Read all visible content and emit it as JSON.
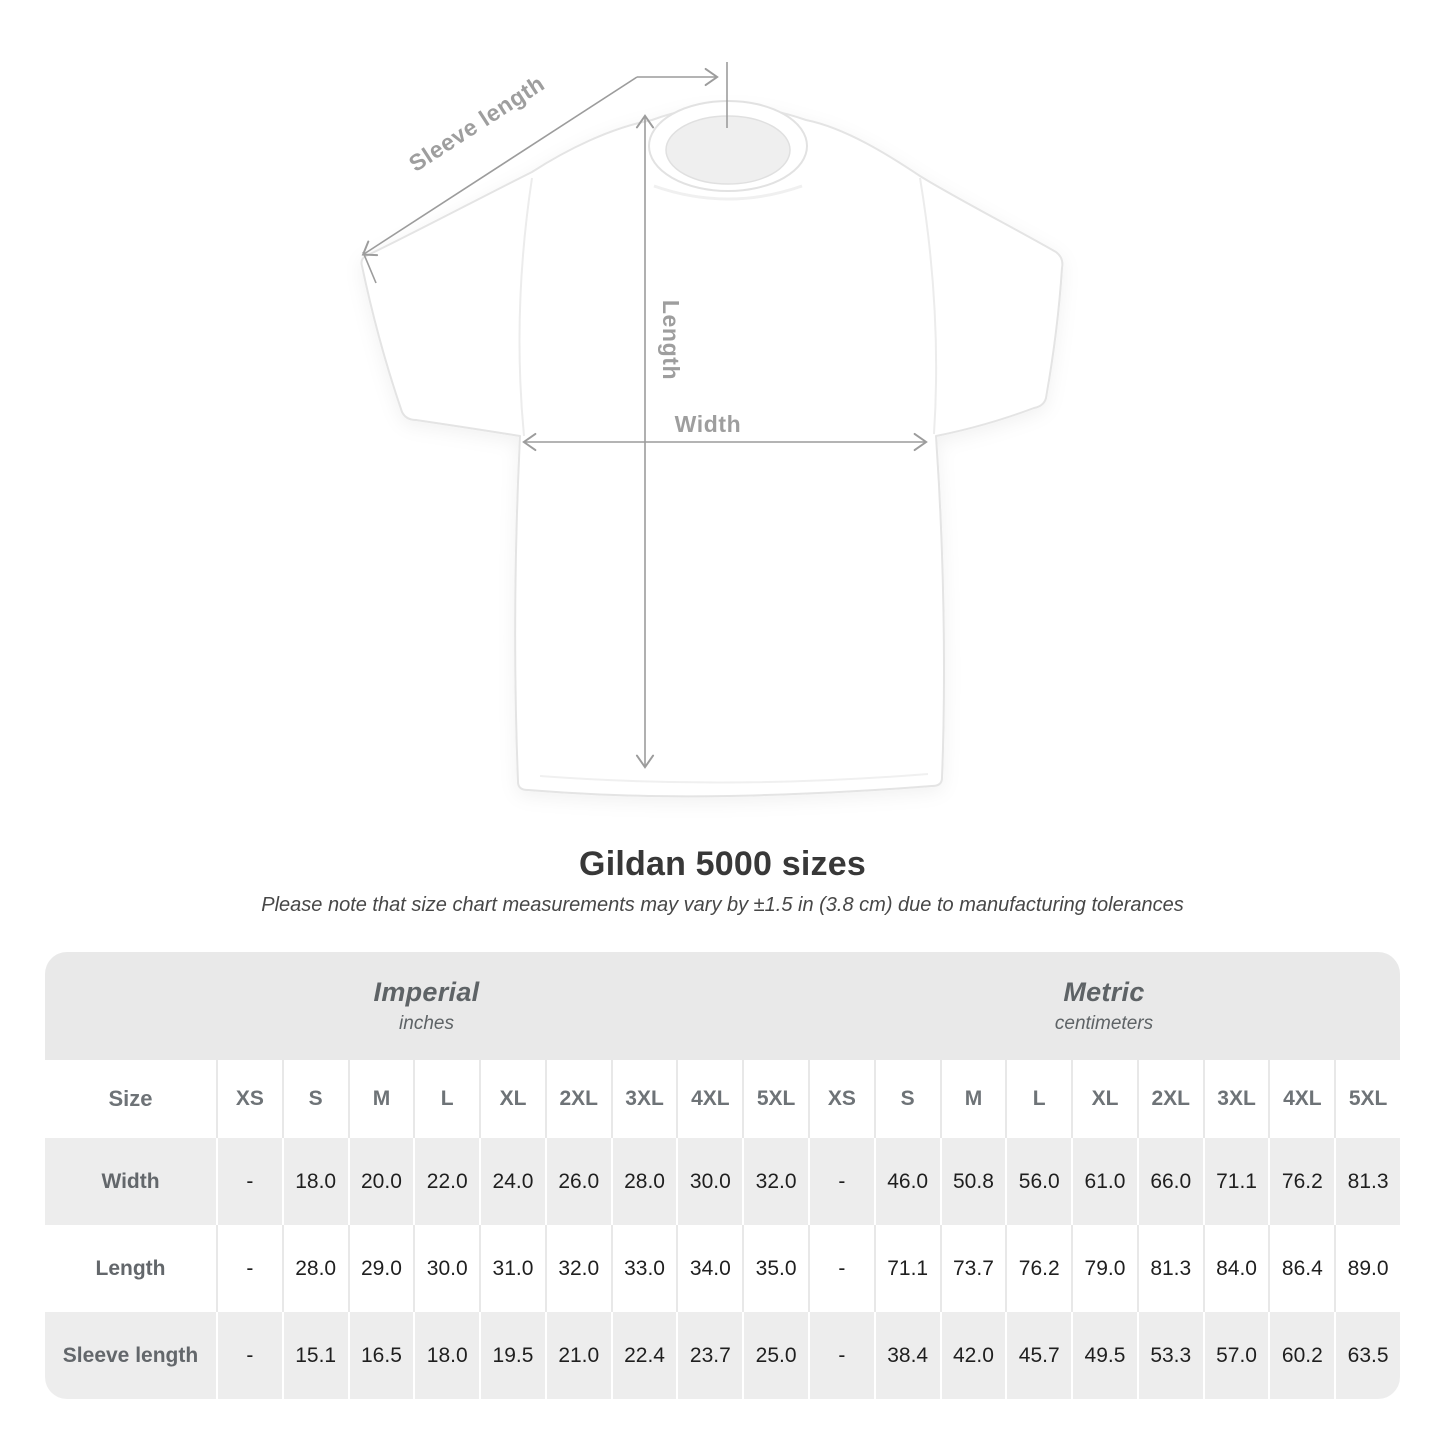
{
  "title": "Gildan 5000 sizes",
  "subtitle": "Please note that size chart measurements may vary by ±1.5 in (3.8 cm) due to manufacturing tolerances",
  "hero": {
    "sleeve_label": "Sleeve length",
    "length_label": "Length",
    "width_label": "Width"
  },
  "colors": {
    "annotation_gray": "#9c9c9c",
    "band_gray": "#e9e9e9",
    "row_gray": "#ededed",
    "value_text": "#1f1f1f",
    "heading_text": "#383838"
  },
  "table": {
    "size_label": "Size",
    "groups": [
      {
        "name": "Imperial",
        "unit": "inches"
      },
      {
        "name": "Metric",
        "unit": "centimeters"
      }
    ],
    "sizes": [
      "XS",
      "S",
      "M",
      "L",
      "XL",
      "2XL",
      "3XL",
      "4XL",
      "5XL"
    ],
    "rows": [
      {
        "label": "Width",
        "imperial": [
          "-",
          "18.0",
          "20.0",
          "22.0",
          "24.0",
          "26.0",
          "28.0",
          "30.0",
          "32.0"
        ],
        "metric": [
          "-",
          "46.0",
          "50.8",
          "56.0",
          "61.0",
          "66.0",
          "71.1",
          "76.2",
          "81.3"
        ]
      },
      {
        "label": "Length",
        "imperial": [
          "-",
          "28.0",
          "29.0",
          "30.0",
          "31.0",
          "32.0",
          "33.0",
          "34.0",
          "35.0"
        ],
        "metric": [
          "-",
          "71.1",
          "73.7",
          "76.2",
          "79.0",
          "81.3",
          "84.0",
          "86.4",
          "89.0"
        ]
      },
      {
        "label": "Sleeve length",
        "imperial": [
          "-",
          "15.1",
          "16.5",
          "18.0",
          "19.5",
          "21.0",
          "22.4",
          "23.7",
          "25.0"
        ],
        "metric": [
          "-",
          "38.4",
          "42.0",
          "45.7",
          "49.5",
          "53.3",
          "57.0",
          "60.2",
          "63.5"
        ]
      }
    ]
  }
}
